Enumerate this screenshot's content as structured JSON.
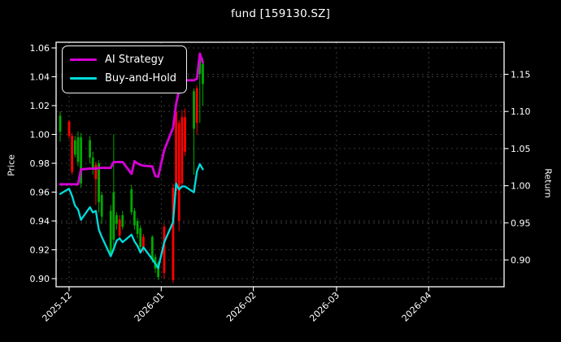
{
  "chart": {
    "title": "fund [159130.SZ]",
    "left_axis_label": "Price",
    "right_axis_label": "Return"
  },
  "legend": {
    "items": [
      {
        "label": "AI Strategy",
        "color": "#d400d4"
      },
      {
        "label": "Buy-and-Hold",
        "color": "#00dcdc"
      }
    ]
  },
  "chart_data": {
    "type": "candlestick+line",
    "title": "fund [159130.SZ]",
    "left_axis": {
      "label": "Price",
      "ticks": [
        1.06,
        1.04,
        1.02,
        1.0,
        0.98,
        0.96,
        0.94,
        0.92,
        0.9
      ],
      "range": [
        0.894,
        1.064
      ],
      "grid": true
    },
    "right_axis": {
      "label": "Return",
      "ticks": [
        1.15,
        1.1,
        1.05,
        1.0,
        0.95,
        0.9
      ],
      "range": [
        0.864,
        1.194
      ],
      "grid": true
    },
    "x_axis": {
      "tick_labels": [
        "2025-12",
        "2026-01",
        "2026-02",
        "2026-03",
        "2026-04"
      ],
      "tick_dates": [
        "2025-12-01",
        "2026-01-01",
        "2026-02-01",
        "2026-03-01",
        "2026-04-01"
      ],
      "range": [
        "2025-11-26",
        "2026-04-26"
      ],
      "label_rotation_deg": 45
    },
    "colors": {
      "up_candle": "#ff0000",
      "down_candle": "#00a800",
      "ai_strategy": "#d400d4",
      "buy_and_hold": "#00dcdc",
      "grid": "#5a5a5a",
      "background": "#000000",
      "text": "#ffffff"
    },
    "legend_position": "upper-left",
    "candles": [
      {
        "date": "2025-11-28",
        "o": 1.013,
        "h": 1.016,
        "l": 0.995,
        "c": 1.002
      },
      {
        "date": "2025-12-01",
        "o": 0.999,
        "h": 1.01,
        "l": 0.997,
        "c": 1.009
      },
      {
        "date": "2025-12-02",
        "o": 0.974,
        "h": 1.001,
        "l": 0.972,
        "c": 0.999
      },
      {
        "date": "2025-12-03",
        "o": 0.996,
        "h": 0.999,
        "l": 0.984,
        "c": 0.986
      },
      {
        "date": "2025-12-04",
        "o": 0.998,
        "h": 1.002,
        "l": 0.978,
        "c": 0.981
      },
      {
        "date": "2025-12-05",
        "o": 0.998,
        "h": 1.001,
        "l": 0.963,
        "c": 0.966
      },
      {
        "date": "2025-12-08",
        "o": 0.996,
        "h": 0.999,
        "l": 0.98,
        "c": 0.984
      },
      {
        "date": "2025-12-09",
        "o": 0.984,
        "h": 0.988,
        "l": 0.972,
        "c": 0.977
      },
      {
        "date": "2025-12-10",
        "o": 0.969,
        "h": 0.981,
        "l": 0.951,
        "c": 0.979
      },
      {
        "date": "2025-12-11",
        "o": 0.98,
        "h": 0.982,
        "l": 0.946,
        "c": 0.953
      },
      {
        "date": "2025-12-12",
        "o": 0.958,
        "h": 0.96,
        "l": 0.938,
        "c": 0.943
      },
      {
        "date": "2025-12-15",
        "o": 0.947,
        "h": 0.951,
        "l": 0.915,
        "c": 0.917
      },
      {
        "date": "2025-12-16",
        "o": 0.96,
        "h": 1.0,
        "l": 0.919,
        "c": 0.927
      },
      {
        "date": "2025-12-17",
        "o": 0.944,
        "h": 0.946,
        "l": 0.934,
        "c": 0.938
      },
      {
        "date": "2025-12-18",
        "o": 0.93,
        "h": 0.944,
        "l": 0.928,
        "c": 0.941
      },
      {
        "date": "2025-12-19",
        "o": 0.944,
        "h": 0.947,
        "l": 0.934,
        "c": 0.936
      },
      {
        "date": "2025-12-22",
        "o": 0.962,
        "h": 0.965,
        "l": 0.944,
        "c": 0.946
      },
      {
        "date": "2025-12-23",
        "o": 0.947,
        "h": 0.949,
        "l": 0.934,
        "c": 0.937
      },
      {
        "date": "2025-12-24",
        "o": 0.94,
        "h": 0.942,
        "l": 0.928,
        "c": 0.931
      },
      {
        "date": "2025-12-25",
        "o": 0.935,
        "h": 0.937,
        "l": 0.92,
        "c": 0.922
      },
      {
        "date": "2025-12-26",
        "o": 0.921,
        "h": 0.931,
        "l": 0.918,
        "c": 0.929
      },
      {
        "date": "2025-12-29",
        "o": 0.929,
        "h": 0.93,
        "l": 0.911,
        "c": 0.913
      },
      {
        "date": "2025-12-30",
        "o": 0.915,
        "h": 0.917,
        "l": 0.904,
        "c": 0.907
      },
      {
        "date": "2025-12-31",
        "o": 0.911,
        "h": 0.912,
        "l": 0.899,
        "c": 0.901
      },
      {
        "date": "2026-01-02",
        "o": 0.904,
        "h": 0.938,
        "l": 0.9,
        "c": 0.936
      },
      {
        "date": "2026-01-05",
        "o": 0.899,
        "h": 0.966,
        "l": 0.897,
        "c": 0.963
      },
      {
        "date": "2026-01-06",
        "o": 0.961,
        "h": 1.018,
        "l": 0.958,
        "c": 1.016
      },
      {
        "date": "2026-01-07",
        "o": 0.94,
        "h": 1.01,
        "l": 0.933,
        "c": 1.008
      },
      {
        "date": "2026-01-08",
        "o": 0.966,
        "h": 1.017,
        "l": 0.963,
        "c": 1.012
      },
      {
        "date": "2026-01-09",
        "o": 0.988,
        "h": 1.018,
        "l": 0.985,
        "c": 1.012
      },
      {
        "date": "2026-01-12",
        "o": 1.03,
        "h": 1.032,
        "l": 0.972,
        "c": 1.004
      },
      {
        "date": "2026-01-13",
        "o": 1.008,
        "h": 1.034,
        "l": 1.0,
        "c": 1.032
      },
      {
        "date": "2026-01-14",
        "o": 1.052,
        "h": 1.055,
        "l": 1.008,
        "c": 1.042
      },
      {
        "date": "2026-01-15",
        "o": 1.049,
        "h": 1.053,
        "l": 1.02,
        "c": 1.035
      }
    ],
    "series": [
      {
        "name": "AI Strategy",
        "axis": "right",
        "color": "#d400d4",
        "values": [
          1.002,
          1.002,
          1.002,
          1.002,
          1.002,
          1.022,
          1.023,
          1.023,
          1.023,
          1.024,
          1.024,
          1.024,
          1.032,
          1.032,
          1.032,
          1.032,
          1.016,
          1.033,
          1.03,
          1.028,
          1.027,
          1.026,
          1.013,
          1.012,
          1.048,
          1.078,
          1.11,
          1.128,
          1.138,
          1.142,
          1.142,
          1.144,
          1.178,
          1.166
        ]
      },
      {
        "name": "Buy-and-Hold",
        "axis": "right",
        "color": "#00dcdc",
        "values": [
          0.989,
          0.996,
          0.986,
          0.973,
          0.968,
          0.954,
          0.971,
          0.964,
          0.966,
          0.941,
          0.931,
          0.905,
          0.915,
          0.926,
          0.929,
          0.924,
          0.934,
          0.925,
          0.919,
          0.91,
          0.917,
          0.901,
          0.895,
          0.889,
          0.924,
          0.951,
          1.003,
          0.995,
          0.999,
          0.999,
          0.991,
          1.019,
          1.029,
          1.022
        ]
      }
    ]
  }
}
